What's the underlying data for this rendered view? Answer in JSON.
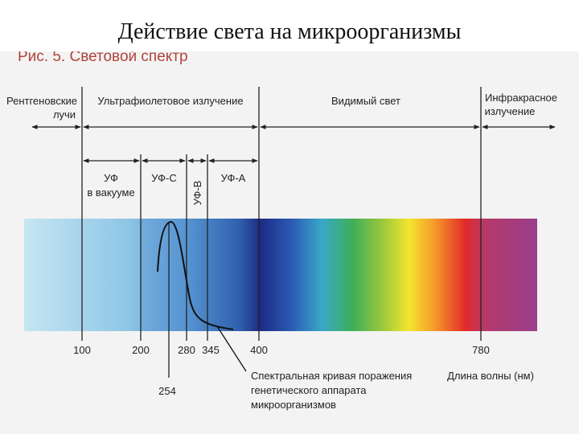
{
  "header": {
    "title": "Действие света на микроорганизмы",
    "figure_caption": "Рис. 5. Световой спектр"
  },
  "regions": {
    "xray": [
      "Рентгеновские",
      "лучи"
    ],
    "uv": "Ультрафиолетовое излучение",
    "visible": "Видимый свет",
    "infrared": [
      "Инфракрасное",
      "излучение"
    ]
  },
  "uv_bands": {
    "vacuum": [
      "УФ",
      "в вакууме"
    ],
    "uvc": "УФ-С",
    "uvb": "УФ-В",
    "uva": "УФ-А"
  },
  "wavelength_ticks": [
    100,
    200,
    280,
    345,
    400,
    780
  ],
  "peak_label": 254,
  "axis_label": "Длина волны (нм)",
  "curve_label": [
    "Спектральная кривая поражения",
    "генетического аппарата",
    "микроорганизмов"
  ]
}
